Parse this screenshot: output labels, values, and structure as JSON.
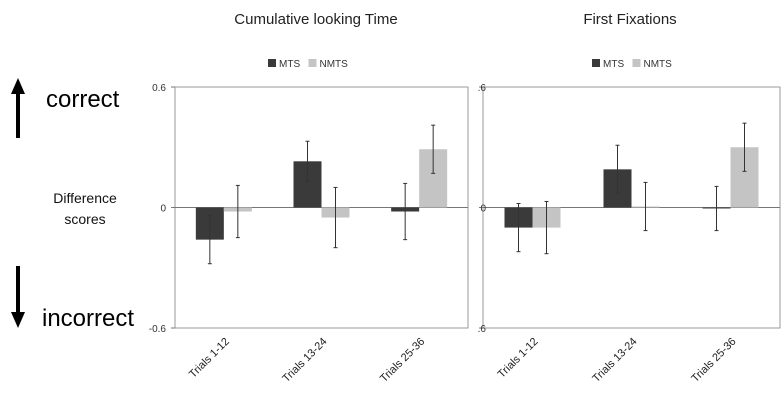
{
  "side_labels": {
    "correct": "correct",
    "incorrect": "incorrect",
    "difference_line1": "Difference",
    "difference_line2": "scores"
  },
  "chart_data": [
    {
      "type": "bar",
      "title": "Cumulative looking Time",
      "categories": [
        "Trials 1-12",
        "Trials 13-24",
        "Trials 25-36"
      ],
      "ylim": [
        -0.6,
        0.6
      ],
      "yticks": [
        "0.6",
        "0",
        "-0.6"
      ],
      "legend": "top",
      "grid": false,
      "series": [
        {
          "name": "MTS",
          "color": "#3a3a3a",
          "values": [
            -0.16,
            0.23,
            -0.02
          ],
          "errors": [
            0.12,
            0.1,
            0.14
          ]
        },
        {
          "name": "NMTS",
          "color": "#c4c4c4",
          "values": [
            -0.02,
            -0.05,
            0.29
          ],
          "errors": [
            0.13,
            0.15,
            0.12
          ]
        }
      ]
    },
    {
      "type": "bar",
      "title": "First Fixations",
      "categories": [
        "Trials 1-12",
        "Trials 13-24",
        "Trials 25-36"
      ],
      "ylim": [
        -0.6,
        0.6
      ],
      "yticks": [
        ".6",
        "0",
        ".6"
      ],
      "legend": "top",
      "grid": false,
      "series": [
        {
          "name": "MTS",
          "color": "#3a3a3a",
          "values": [
            -0.1,
            0.19,
            -0.005
          ],
          "errors": [
            0.12,
            0.12,
            0.11
          ]
        },
        {
          "name": "NMTS",
          "color": "#c4c4c4",
          "values": [
            -0.1,
            0.005,
            0.3
          ],
          "errors": [
            0.13,
            0.12,
            0.12
          ]
        }
      ]
    }
  ]
}
